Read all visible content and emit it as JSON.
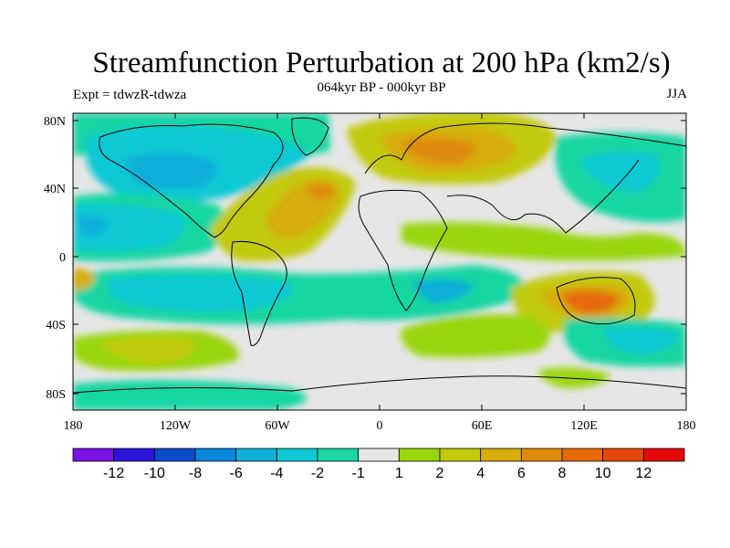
{
  "title": "Streamfunction Perturbation at 200 hPa (km2/s)",
  "subtitle": "064kyr BP - 000kyr BP",
  "left_label": "Expt = tdwzR-tdwza",
  "right_label": "JJA",
  "axes": {
    "y_ticks": [
      "80N",
      "40N",
      "0",
      "40S",
      "80S"
    ],
    "x_ticks": [
      "180",
      "120W",
      "60W",
      "0",
      "60E",
      "120E",
      "180"
    ]
  },
  "colorbar": {
    "labels": [
      "-12",
      "-10",
      "-8",
      "-6",
      "-4",
      "-2",
      "-1",
      "1",
      "2",
      "4",
      "6",
      "8",
      "10",
      "12"
    ],
    "colors": [
      "#7b12e6",
      "#2a16d9",
      "#0a4ccc",
      "#0a86dd",
      "#10aed8",
      "#0ec9d4",
      "#19d6a2",
      "#e6e6e6",
      "#9ad60c",
      "#c2ca0a",
      "#d6ad0a",
      "#df8a08",
      "#e66a08",
      "#e4480a",
      "#e40a0a"
    ]
  },
  "map_colors": {
    "ocean_default": "#e6e6e6",
    "coastline": "#000000"
  }
}
